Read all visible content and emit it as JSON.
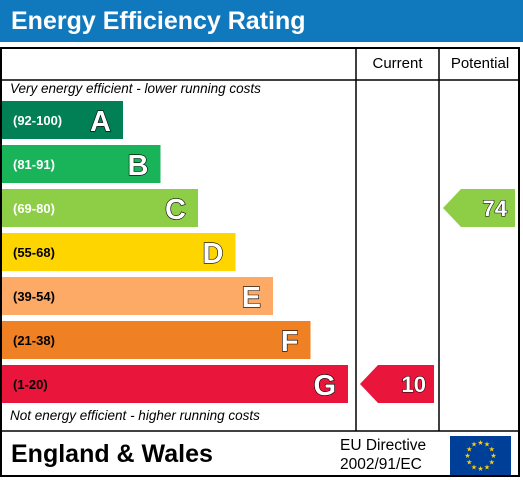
{
  "title": "Energy Efficiency Rating",
  "headers": {
    "current": "Current",
    "potential": "Potential"
  },
  "notes": {
    "top": "Very energy efficient - lower running costs",
    "bottom": "Not energy efficient - higher running costs"
  },
  "footer": {
    "region": "England & Wales",
    "directive_line1": "EU Directive",
    "directive_line2": "2002/91/EC"
  },
  "colors": {
    "title_bar": "#1078bc",
    "eu_flag": "#003f98",
    "eu_stars": "#ffcc00"
  },
  "chart_data": {
    "type": "bar",
    "bands": [
      {
        "letter": "A",
        "range": "(92-100)",
        "color": "#008054"
      },
      {
        "letter": "B",
        "range": "(81-91)",
        "color": "#19b459"
      },
      {
        "letter": "C",
        "range": "(69-80)",
        "color": "#8dce46"
      },
      {
        "letter": "D",
        "range": "(55-68)",
        "color": "#ffd500"
      },
      {
        "letter": "E",
        "range": "(39-54)",
        "color": "#fcaa65"
      },
      {
        "letter": "F",
        "range": "(21-38)",
        "color": "#ef8023"
      },
      {
        "letter": "G",
        "range": "(1-20)",
        "color": "#e9153b"
      }
    ],
    "current": {
      "value": 10,
      "band": "G",
      "color": "#e9153b"
    },
    "potential": {
      "value": 74,
      "band": "C",
      "color": "#8dce46"
    }
  }
}
